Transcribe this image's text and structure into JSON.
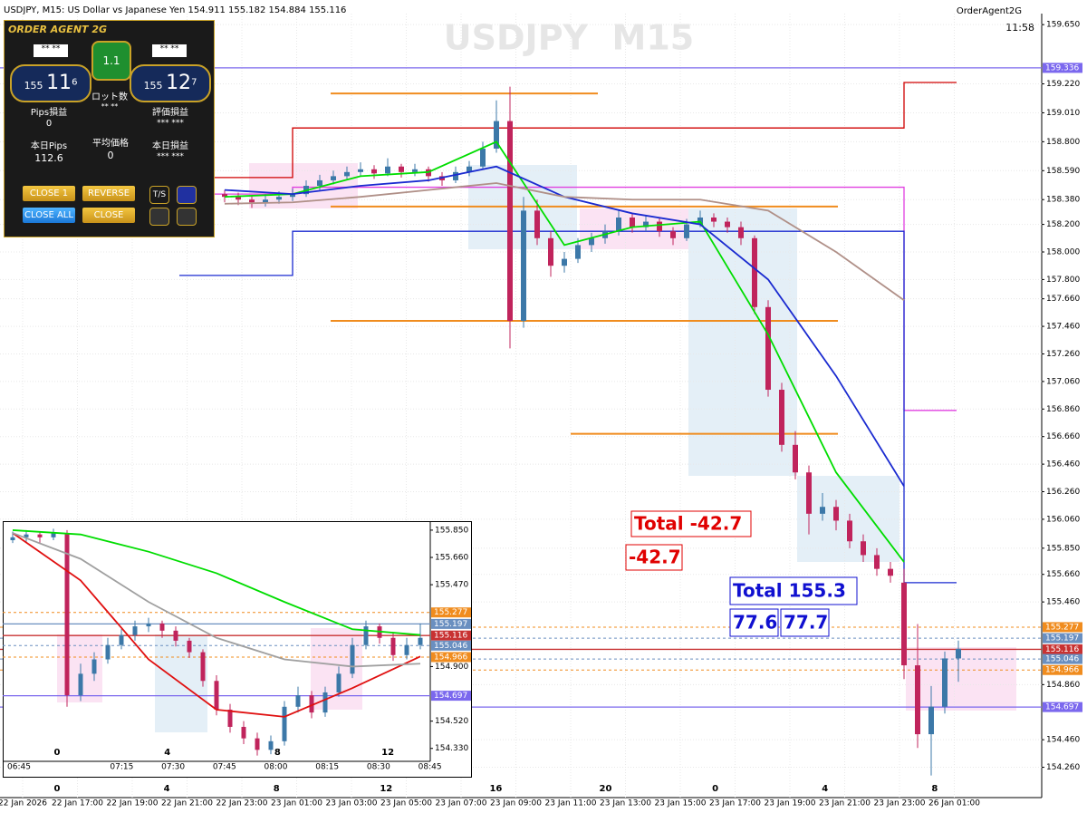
{
  "header": {
    "symbol_info": "USDJPY, M15:  US Dollar vs Japanese Yen  154.911 155.182 154.884 155.116",
    "ea_name": "OrderAgent2G",
    "time": "11:58",
    "watermark": "USDJPY  M15"
  },
  "panel": {
    "title": "ORDER AGENT 2G",
    "lot_left": "** **",
    "lot_value": "1.1",
    "lot_right": "** **",
    "bid": {
      "big": "155",
      "mid": "11",
      "small": "6"
    },
    "ask": {
      "big": "155",
      "mid": "12",
      "small": "7"
    },
    "lot_label": "ロット数",
    "lot_sub": "** **",
    "pips_label": "Pips損益",
    "pips_value": "0",
    "eval_label": "評価損益",
    "eval_value": "*** ***",
    "today_pips_label": "本日Pips",
    "today_pips_value": "112.6",
    "avg_label": "平均価格",
    "avg_value": "0",
    "today_pl_label": "本日損益",
    "today_pl_value": "*** ***",
    "buttons": [
      "CLOSE 1",
      "REVERSE",
      "CLOSE ALL",
      "CLOSE"
    ],
    "ts": "T/S"
  },
  "chart_data": [
    {
      "type": "candlestick",
      "bull_color": "#3c78a8",
      "bear_color": "#c0245c",
      "grid": true,
      "ylim": [
        154.04,
        159.73
      ],
      "yticks": [
        {
          "value": 159.65,
          "label": "159.650"
        },
        {
          "value": 159.22,
          "label": "159.220"
        },
        {
          "value": 159.01,
          "label": "159.010"
        },
        {
          "value": 158.8,
          "label": "158.800"
        },
        {
          "value": 158.59,
          "label": "158.590"
        },
        {
          "value": 158.38,
          "label": "158.380"
        },
        {
          "value": 158.2,
          "label": "158.200"
        },
        {
          "value": 158.0,
          "label": "158.000"
        },
        {
          "value": 157.8,
          "label": "157.800"
        },
        {
          "value": 157.66,
          "label": "157.660"
        },
        {
          "value": 157.46,
          "label": "157.460"
        },
        {
          "value": 157.26,
          "label": "157.260"
        },
        {
          "value": 157.06,
          "label": "157.060"
        },
        {
          "value": 156.86,
          "label": "156.860"
        },
        {
          "value": 156.66,
          "label": "156.660"
        },
        {
          "value": 156.46,
          "label": "156.460"
        },
        {
          "value": 156.26,
          "label": "156.260"
        },
        {
          "value": 156.06,
          "label": "156.060"
        },
        {
          "value": 155.85,
          "label": "155.850"
        },
        {
          "value": 155.66,
          "label": "155.660"
        },
        {
          "value": 155.46,
          "label": "155.460"
        },
        {
          "value": 154.86,
          "label": "154.860"
        },
        {
          "value": 154.46,
          "label": "154.460"
        },
        {
          "value": 154.26,
          "label": "154.260"
        }
      ],
      "x_labels": [
        "22 Jan 2026",
        "22 Jan 17:00",
        "22 Jan 19:00",
        "22 Jan 21:00",
        "22 Jan 23:00",
        "23 Jan 01:00",
        "23 Jan 03:00",
        "23 Jan 05:00",
        "23 Jan 07:00",
        "23 Jan 09:00",
        "23 Jan 11:00",
        "23 Jan 13:00",
        "23 Jan 15:00",
        "23 Jan 17:00",
        "23 Jan 19:00",
        "23 Jan 21:00",
        "23 Jan 23:00",
        "26 Jan 01:00"
      ],
      "hour_marks": [
        0,
        4,
        8,
        12,
        16,
        20,
        0,
        4,
        8
      ],
      "levels": [
        {
          "value": 159.336,
          "color": "#7b68ee",
          "dashed": false
        },
        {
          "value": 155.277,
          "color": "#f08c1e",
          "dashed": true
        },
        {
          "value": 155.197,
          "color": "#6a8fc0",
          "dashed": true
        },
        {
          "value": 155.116,
          "color": "#c83232",
          "dashed": false
        },
        {
          "value": 155.046,
          "color": "#6a8fc0",
          "dashed": true
        },
        {
          "value": 154.966,
          "color": "#f08c1e",
          "dashed": true
        },
        {
          "value": 154.697,
          "color": "#7b68ee",
          "dashed": false
        }
      ],
      "order_levels": [
        159.15,
        158.33,
        157.5,
        156.68
      ],
      "indicators": [
        {
          "color": "#00dd00",
          "values": [
            158.4,
            158.42,
            158.55,
            158.58,
            158.8,
            158.05,
            158.18,
            158.22,
            157.4,
            156.4,
            155.75
          ]
        },
        {
          "color": "#1a2ad0",
          "values": [
            158.45,
            158.42,
            158.48,
            158.52,
            158.62,
            158.4,
            158.28,
            158.2,
            157.8,
            157.1,
            156.3
          ]
        },
        {
          "color": "#b09088",
          "values": [
            158.35,
            158.36,
            158.4,
            158.45,
            158.5,
            158.4,
            158.38,
            158.38,
            158.3,
            158.0,
            157.65
          ]
        }
      ],
      "step_lines": [
        {
          "color": "#d00000",
          "values": [
            158.54,
            158.9,
            158.9,
            158.9,
            158.9,
            158.9,
            158.9,
            158.9,
            158.9,
            158.9,
            159.23
          ]
        },
        {
          "color": "#e040e0",
          "values": [
            158.42,
            158.47,
            158.47,
            158.47,
            158.47,
            158.47,
            158.47,
            158.47,
            158.47,
            158.47,
            156.85
          ]
        },
        {
          "color": "#1a2ad0",
          "values": [
            157.83,
            158.15,
            158.15,
            158.15,
            158.15,
            158.15,
            158.15,
            158.15,
            158.15,
            158.15,
            155.6
          ]
        }
      ],
      "annotations": [
        {
          "text": "Total -42.7",
          "color": "#e00000"
        },
        {
          "text": "-42.7",
          "color": "#e00000"
        },
        {
          "text": "Total 155.3",
          "color": "#1010d0"
        },
        {
          "text": "77.6",
          "color": "#1010d0"
        },
        {
          "text": "77.7",
          "color": "#1010d0"
        }
      ],
      "candles": [
        [
          158.42,
          158.45,
          158.36,
          158.4
        ],
        [
          158.4,
          158.43,
          158.34,
          158.38
        ],
        [
          158.38,
          158.41,
          158.32,
          158.36
        ],
        [
          158.36,
          158.42,
          158.33,
          158.38
        ],
        [
          158.38,
          158.44,
          158.35,
          158.4
        ],
        [
          158.4,
          158.46,
          158.37,
          158.42
        ],
        [
          158.42,
          158.52,
          158.4,
          158.48
        ],
        [
          158.48,
          158.56,
          158.45,
          158.52
        ],
        [
          158.52,
          158.59,
          158.49,
          158.55
        ],
        [
          158.55,
          158.62,
          158.52,
          158.58
        ],
        [
          158.58,
          158.65,
          158.55,
          158.6
        ],
        [
          158.6,
          158.63,
          158.53,
          158.57
        ],
        [
          158.57,
          158.68,
          158.55,
          158.62
        ],
        [
          158.62,
          158.64,
          158.54,
          158.58
        ],
        [
          158.58,
          158.64,
          158.55,
          158.6
        ],
        [
          158.6,
          158.62,
          158.51,
          158.55
        ],
        [
          158.55,
          158.58,
          158.48,
          158.52
        ],
        [
          158.52,
          158.62,
          158.5,
          158.58
        ],
        [
          158.58,
          158.66,
          158.55,
          158.62
        ],
        [
          158.62,
          158.8,
          158.6,
          158.75
        ],
        [
          158.75,
          159.1,
          158.72,
          158.95
        ],
        [
          158.95,
          159.2,
          157.3,
          157.5
        ],
        [
          157.5,
          158.4,
          157.45,
          158.3
        ],
        [
          158.3,
          158.38,
          158.05,
          158.1
        ],
        [
          158.1,
          158.15,
          157.82,
          157.9
        ],
        [
          157.9,
          158.0,
          157.85,
          157.95
        ],
        [
          157.95,
          158.1,
          157.92,
          158.05
        ],
        [
          158.05,
          158.14,
          158.0,
          158.1
        ],
        [
          158.1,
          158.2,
          158.06,
          158.15
        ],
        [
          158.15,
          158.3,
          158.12,
          158.25
        ],
        [
          158.25,
          158.28,
          158.14,
          158.18
        ],
        [
          158.18,
          158.26,
          158.15,
          158.22
        ],
        [
          158.22,
          158.25,
          158.11,
          158.15
        ],
        [
          158.15,
          158.18,
          158.05,
          158.1
        ],
        [
          158.1,
          158.24,
          158.08,
          158.2
        ],
        [
          158.2,
          158.3,
          158.18,
          158.25
        ],
        [
          158.25,
          158.28,
          158.18,
          158.22
        ],
        [
          158.22,
          158.25,
          158.14,
          158.18
        ],
        [
          158.18,
          158.22,
          158.05,
          158.1
        ],
        [
          158.1,
          158.12,
          157.55,
          157.6
        ],
        [
          157.6,
          157.65,
          156.95,
          157.0
        ],
        [
          157.0,
          157.05,
          156.55,
          156.6
        ],
        [
          156.6,
          156.7,
          156.35,
          156.4
        ],
        [
          156.4,
          156.45,
          155.95,
          156.1
        ],
        [
          156.1,
          156.25,
          156.05,
          156.15
        ],
        [
          156.15,
          156.2,
          155.98,
          156.05
        ],
        [
          156.05,
          156.1,
          155.85,
          155.9
        ],
        [
          155.9,
          155.95,
          155.75,
          155.8
        ],
        [
          155.8,
          155.85,
          155.65,
          155.7
        ],
        [
          155.7,
          155.75,
          155.6,
          155.65
        ],
        [
          155.6,
          155.7,
          154.9,
          155.0
        ],
        [
          155.0,
          155.3,
          154.4,
          154.5
        ],
        [
          154.5,
          154.85,
          154.2,
          154.7
        ],
        [
          154.7,
          155.1,
          154.65,
          155.05
        ],
        [
          155.05,
          155.18,
          154.88,
          155.12
        ]
      ]
    },
    {
      "type": "candlestick",
      "bull_color": "#3c78a8",
      "bear_color": "#c0245c",
      "ylim": [
        154.24,
        155.9
      ],
      "yticks": [
        {
          "value": 155.85,
          "label": "155.850"
        },
        {
          "value": 155.66,
          "label": "155.660"
        },
        {
          "value": 155.47,
          "label": "155.470"
        },
        {
          "value": 154.9,
          "label": "154.900"
        },
        {
          "value": 154.52,
          "label": "154.520"
        },
        {
          "value": 154.33,
          "label": "154.330"
        }
      ],
      "x_labels": [
        "06:45",
        null,
        "07:15",
        "07:30",
        "07:45",
        "08:00",
        "08:15",
        "08:30",
        "08:45"
      ],
      "hour_marks": [
        0,
        4,
        8,
        12
      ],
      "levels": [
        {
          "value": 155.277,
          "color": "#f08c1e",
          "dashed": true
        },
        {
          "value": 155.197,
          "color": "#6a8fc0",
          "dashed": false
        },
        {
          "value": 155.116,
          "color": "#c83232",
          "dashed": false
        },
        {
          "value": 155.046,
          "color": "#6a8fc0",
          "dashed": true
        },
        {
          "value": 154.966,
          "color": "#f08c1e",
          "dashed": true
        },
        {
          "value": 154.697,
          "color": "#7b68ee",
          "dashed": false
        }
      ],
      "indicators": [
        {
          "color": "#00dd00",
          "values": [
            155.85,
            155.82,
            155.7,
            155.55,
            155.35,
            155.16,
            155.12
          ]
        },
        {
          "color": "#e01010",
          "values": [
            155.83,
            155.5,
            154.95,
            154.6,
            154.55,
            154.75,
            154.97
          ]
        },
        {
          "color": "#a0a0a0",
          "values": [
            155.83,
            155.65,
            155.35,
            155.1,
            154.95,
            154.9,
            154.92
          ]
        }
      ],
      "candles": [
        [
          155.78,
          155.84,
          155.76,
          155.8
        ],
        [
          155.8,
          155.85,
          155.77,
          155.82
        ],
        [
          155.82,
          155.84,
          155.76,
          155.8
        ],
        [
          155.8,
          155.86,
          155.78,
          155.83
        ],
        [
          155.83,
          155.85,
          154.62,
          154.7
        ],
        [
          154.7,
          154.92,
          154.66,
          154.85
        ],
        [
          154.85,
          155.0,
          154.8,
          154.95
        ],
        [
          154.95,
          155.1,
          154.92,
          155.05
        ],
        [
          155.05,
          155.16,
          155.02,
          155.12
        ],
        [
          155.12,
          155.22,
          155.08,
          155.18
        ],
        [
          155.18,
          155.24,
          155.14,
          155.2
        ],
        [
          155.2,
          155.22,
          155.1,
          155.15
        ],
        [
          155.15,
          155.18,
          155.04,
          155.08
        ],
        [
          155.08,
          155.1,
          154.96,
          155.0
        ],
        [
          155.0,
          155.02,
          154.76,
          154.8
        ],
        [
          154.8,
          154.84,
          154.56,
          154.6
        ],
        [
          154.6,
          154.64,
          154.44,
          154.48
        ],
        [
          154.48,
          154.52,
          154.36,
          154.4
        ],
        [
          154.4,
          154.44,
          154.28,
          154.32
        ],
        [
          154.32,
          154.42,
          154.29,
          154.38
        ],
        [
          154.38,
          154.66,
          154.35,
          154.62
        ],
        [
          154.62,
          154.76,
          154.58,
          154.7
        ],
        [
          154.7,
          154.73,
          154.54,
          154.58
        ],
        [
          154.58,
          154.76,
          154.55,
          154.72
        ],
        [
          154.72,
          154.9,
          154.69,
          154.85
        ],
        [
          154.85,
          155.1,
          154.82,
          155.05
        ],
        [
          155.05,
          155.22,
          155.02,
          155.18
        ],
        [
          155.18,
          155.2,
          155.06,
          155.1
        ],
        [
          155.1,
          155.14,
          154.94,
          154.98
        ],
        [
          154.98,
          155.1,
          154.95,
          155.05
        ],
        [
          155.05,
          155.2,
          155.02,
          155.1
        ]
      ]
    }
  ]
}
